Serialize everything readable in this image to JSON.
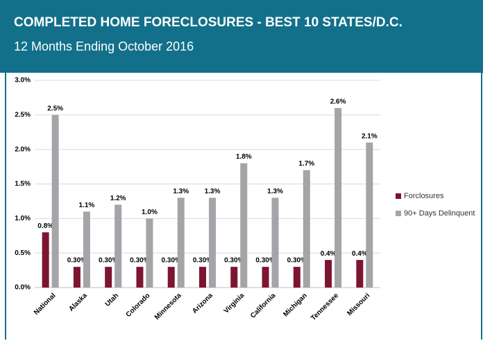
{
  "chart_data": {
    "type": "bar",
    "title": "COMPLETED HOME FORECLOSURES - BEST 10 STATES/D.C.",
    "subtitle": "12 Months Ending October 2016",
    "categories": [
      "National",
      "Alaska",
      "Utah",
      "Colorado",
      "Minnesota",
      "Arizona",
      "Virginia",
      "California",
      "Michigan",
      "Tennessee",
      "Missouri"
    ],
    "series": [
      {
        "name": "Forclosures",
        "color": "#7b1531",
        "values": [
          0.8,
          0.3,
          0.3,
          0.3,
          0.3,
          0.3,
          0.3,
          0.3,
          0.3,
          0.4,
          0.4
        ],
        "value_labels": [
          "0.8%",
          "0.30%",
          "0.30%",
          "0.30%",
          "0.30%",
          "0.30%",
          "0.30%",
          "0.30%",
          "0.30%",
          "0.4%",
          "0.4%"
        ]
      },
      {
        "name": "90+ Days Delinquent",
        "color": "#a3a5a8",
        "values": [
          2.5,
          1.1,
          1.2,
          1.0,
          1.3,
          1.3,
          1.8,
          1.3,
          1.7,
          2.6,
          2.1
        ],
        "value_labels": [
          "2.5%",
          "1.1%",
          "1.2%",
          "1.0%",
          "1.3%",
          "1.3%",
          "1.8%",
          "1.3%",
          "1.7%",
          "2.6%",
          "2.1%"
        ]
      }
    ],
    "ylim": [
      0,
      3
    ],
    "yticks": [
      {
        "value": 0,
        "label": "0.0%"
      },
      {
        "value": 0.5,
        "label": "0.5%"
      },
      {
        "value": 1,
        "label": "1.0%"
      },
      {
        "value": 1.5,
        "label": "1.5%"
      },
      {
        "value": 2,
        "label": "2.0%"
      },
      {
        "value": 2.5,
        "label": "2.5%"
      },
      {
        "value": 3,
        "label": "3.0%"
      }
    ],
    "grid": true,
    "legend": "right"
  }
}
